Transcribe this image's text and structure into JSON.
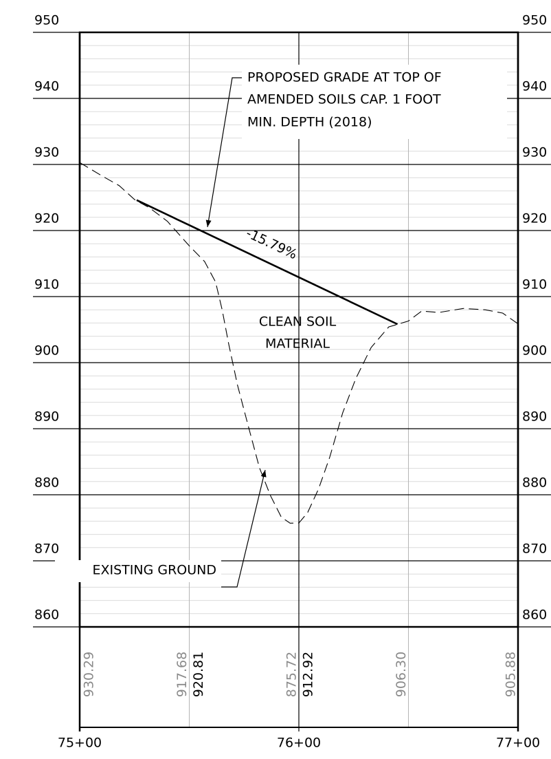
{
  "chart_data": {
    "type": "line",
    "xlim": [
      7500,
      7700
    ],
    "ylim": [
      860,
      950
    ],
    "xticks": [
      {
        "value": 7500,
        "label": "75+00"
      },
      {
        "value": 7600,
        "label": "76+00"
      },
      {
        "value": 7700,
        "label": "77+00"
      }
    ],
    "minor_xticks": [
      7550,
      7650
    ],
    "yticks": [
      860,
      870,
      880,
      890,
      900,
      910,
      920,
      930,
      940,
      950
    ],
    "minor_yticks": [
      862,
      864,
      866,
      868,
      872,
      874,
      876,
      878,
      882,
      884,
      886,
      888,
      892,
      894,
      896,
      898,
      902,
      904,
      906,
      908,
      912,
      914,
      916,
      918,
      922,
      924,
      926,
      928,
      932,
      934,
      936,
      938,
      942,
      944,
      946,
      948
    ],
    "series": [
      {
        "name": "EXISTING GROUND",
        "color": "#000000",
        "dashed": true,
        "x": [
          7500,
          7510,
          7518,
          7525,
          7532,
          7540,
          7550,
          7557,
          7562,
          7565,
          7568,
          7572,
          7577,
          7582,
          7587,
          7592,
          7596,
          7600,
          7604,
          7609,
          7614,
          7620,
          7626,
          7633,
          7641,
          7650,
          7656,
          7664,
          7675,
          7685,
          7693,
          7700
        ],
        "values": [
          930.29,
          928.3,
          926.8,
          924.7,
          923.4,
          921.4,
          917.68,
          915.3,
          912.2,
          908.0,
          902.8,
          896.6,
          890.3,
          884.1,
          879.9,
          876.6,
          875.7,
          875.72,
          877.3,
          880.9,
          885.6,
          892.4,
          897.6,
          902.3,
          905.4,
          906.3,
          907.8,
          907.6,
          908.2,
          908.0,
          907.5,
          905.88
        ]
      },
      {
        "color": "#000000",
        "dashed": false,
        "x": [
          7526,
          7550,
          7600,
          7645
        ],
        "values": [
          924.6,
          920.81,
          912.92,
          905.82
        ]
      }
    ],
    "annotations": {
      "proposed_grade": [
        "PROPOSED GRADE AT TOP OF",
        "AMENDED SOILS CAP. 1 FOOT",
        "MIN. DEPTH (2018)"
      ],
      "grade": "-15.79%",
      "material": [
        "CLEAN SOIL",
        "MATERIAL"
      ]
    },
    "elevation_labels": {
      "existing": {
        "x": [
          7500,
          7550,
          7600,
          7650,
          7700
        ],
        "values": [
          930.29,
          917.68,
          875.72,
          906.3,
          905.88
        ],
        "value_labels": [
          "930.29",
          "917.68",
          "875.72",
          "906.30",
          "905.88"
        ]
      },
      "proposed": {
        "x": [
          7550,
          7600
        ],
        "values": [
          920.81,
          912.92
        ],
        "value_labels": [
          "920.81",
          "912.92"
        ]
      }
    }
  }
}
